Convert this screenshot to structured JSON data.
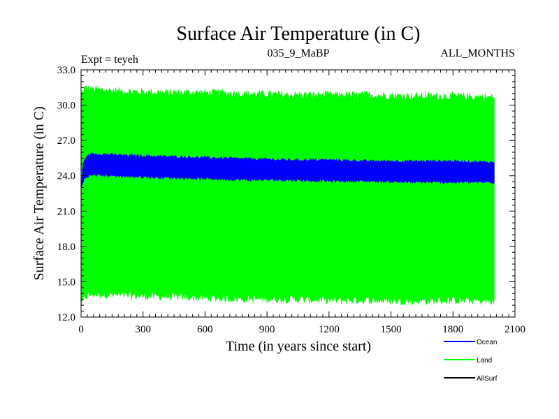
{
  "chart_data": {
    "type": "area",
    "title": "Surface Air Temperature (in C)",
    "subtitle_left": "Expt = teyeh",
    "subtitle_center": "035_9_MaBP",
    "subtitle_right": "ALL_MONTHS",
    "xlabel": "Time (in years since start)",
    "ylabel": "Surface Air Temperature (in C)",
    "xlim": [
      0,
      2100
    ],
    "ylim": [
      12.0,
      33.0
    ],
    "x_ticks": [
      "0",
      "300",
      "600",
      "900",
      "1200",
      "1500",
      "1800",
      "2100"
    ],
    "y_ticks": [
      "12.0",
      "15.0",
      "18.0",
      "21.0",
      "24.0",
      "27.0",
      "30.0",
      "33.0"
    ],
    "x_tick_values": [
      0,
      300,
      600,
      900,
      1200,
      1500,
      1800,
      2100
    ],
    "y_tick_values": [
      12,
      15,
      18,
      21,
      24,
      27,
      30,
      33
    ],
    "series": [
      {
        "name": "Land",
        "color": "#00ff00",
        "x": [
          0,
          20,
          50,
          100,
          200,
          400,
          600,
          800,
          1000,
          1200,
          1400,
          1600,
          1800,
          2000
        ],
        "upper": [
          31.0,
          31.6,
          31.5,
          31.4,
          31.3,
          31.2,
          31.2,
          31.1,
          31.0,
          31.0,
          31.0,
          30.9,
          30.9,
          30.8
        ],
        "lower": [
          12.8,
          13.6,
          13.8,
          13.8,
          13.7,
          13.6,
          13.5,
          13.4,
          13.4,
          13.3,
          13.3,
          13.2,
          13.3,
          13.2
        ]
      },
      {
        "name": "Ocean",
        "color": "#0000ff",
        "x": [
          0,
          10,
          20,
          50,
          100,
          200,
          400,
          600,
          800,
          1000,
          1200,
          1400,
          1600,
          1800,
          2000
        ],
        "upper": [
          23.2,
          25.0,
          25.6,
          25.9,
          25.9,
          25.8,
          25.7,
          25.6,
          25.5,
          25.4,
          25.4,
          25.3,
          25.3,
          25.3,
          25.2
        ],
        "lower": [
          22.9,
          23.4,
          23.8,
          24.0,
          24.0,
          23.9,
          23.8,
          23.7,
          23.6,
          23.6,
          23.5,
          23.5,
          23.4,
          23.4,
          23.4
        ]
      },
      {
        "name": "AllSurf",
        "color": "#000000",
        "x": [],
        "upper": [],
        "lower": []
      }
    ],
    "legend": [
      {
        "name": "Ocean",
        "color": "#0000ff"
      },
      {
        "name": "Land",
        "color": "#00ff00"
      },
      {
        "name": "AllSurf",
        "color": "#000000"
      }
    ],
    "legend_position": "bottom-right",
    "grid": false
  }
}
